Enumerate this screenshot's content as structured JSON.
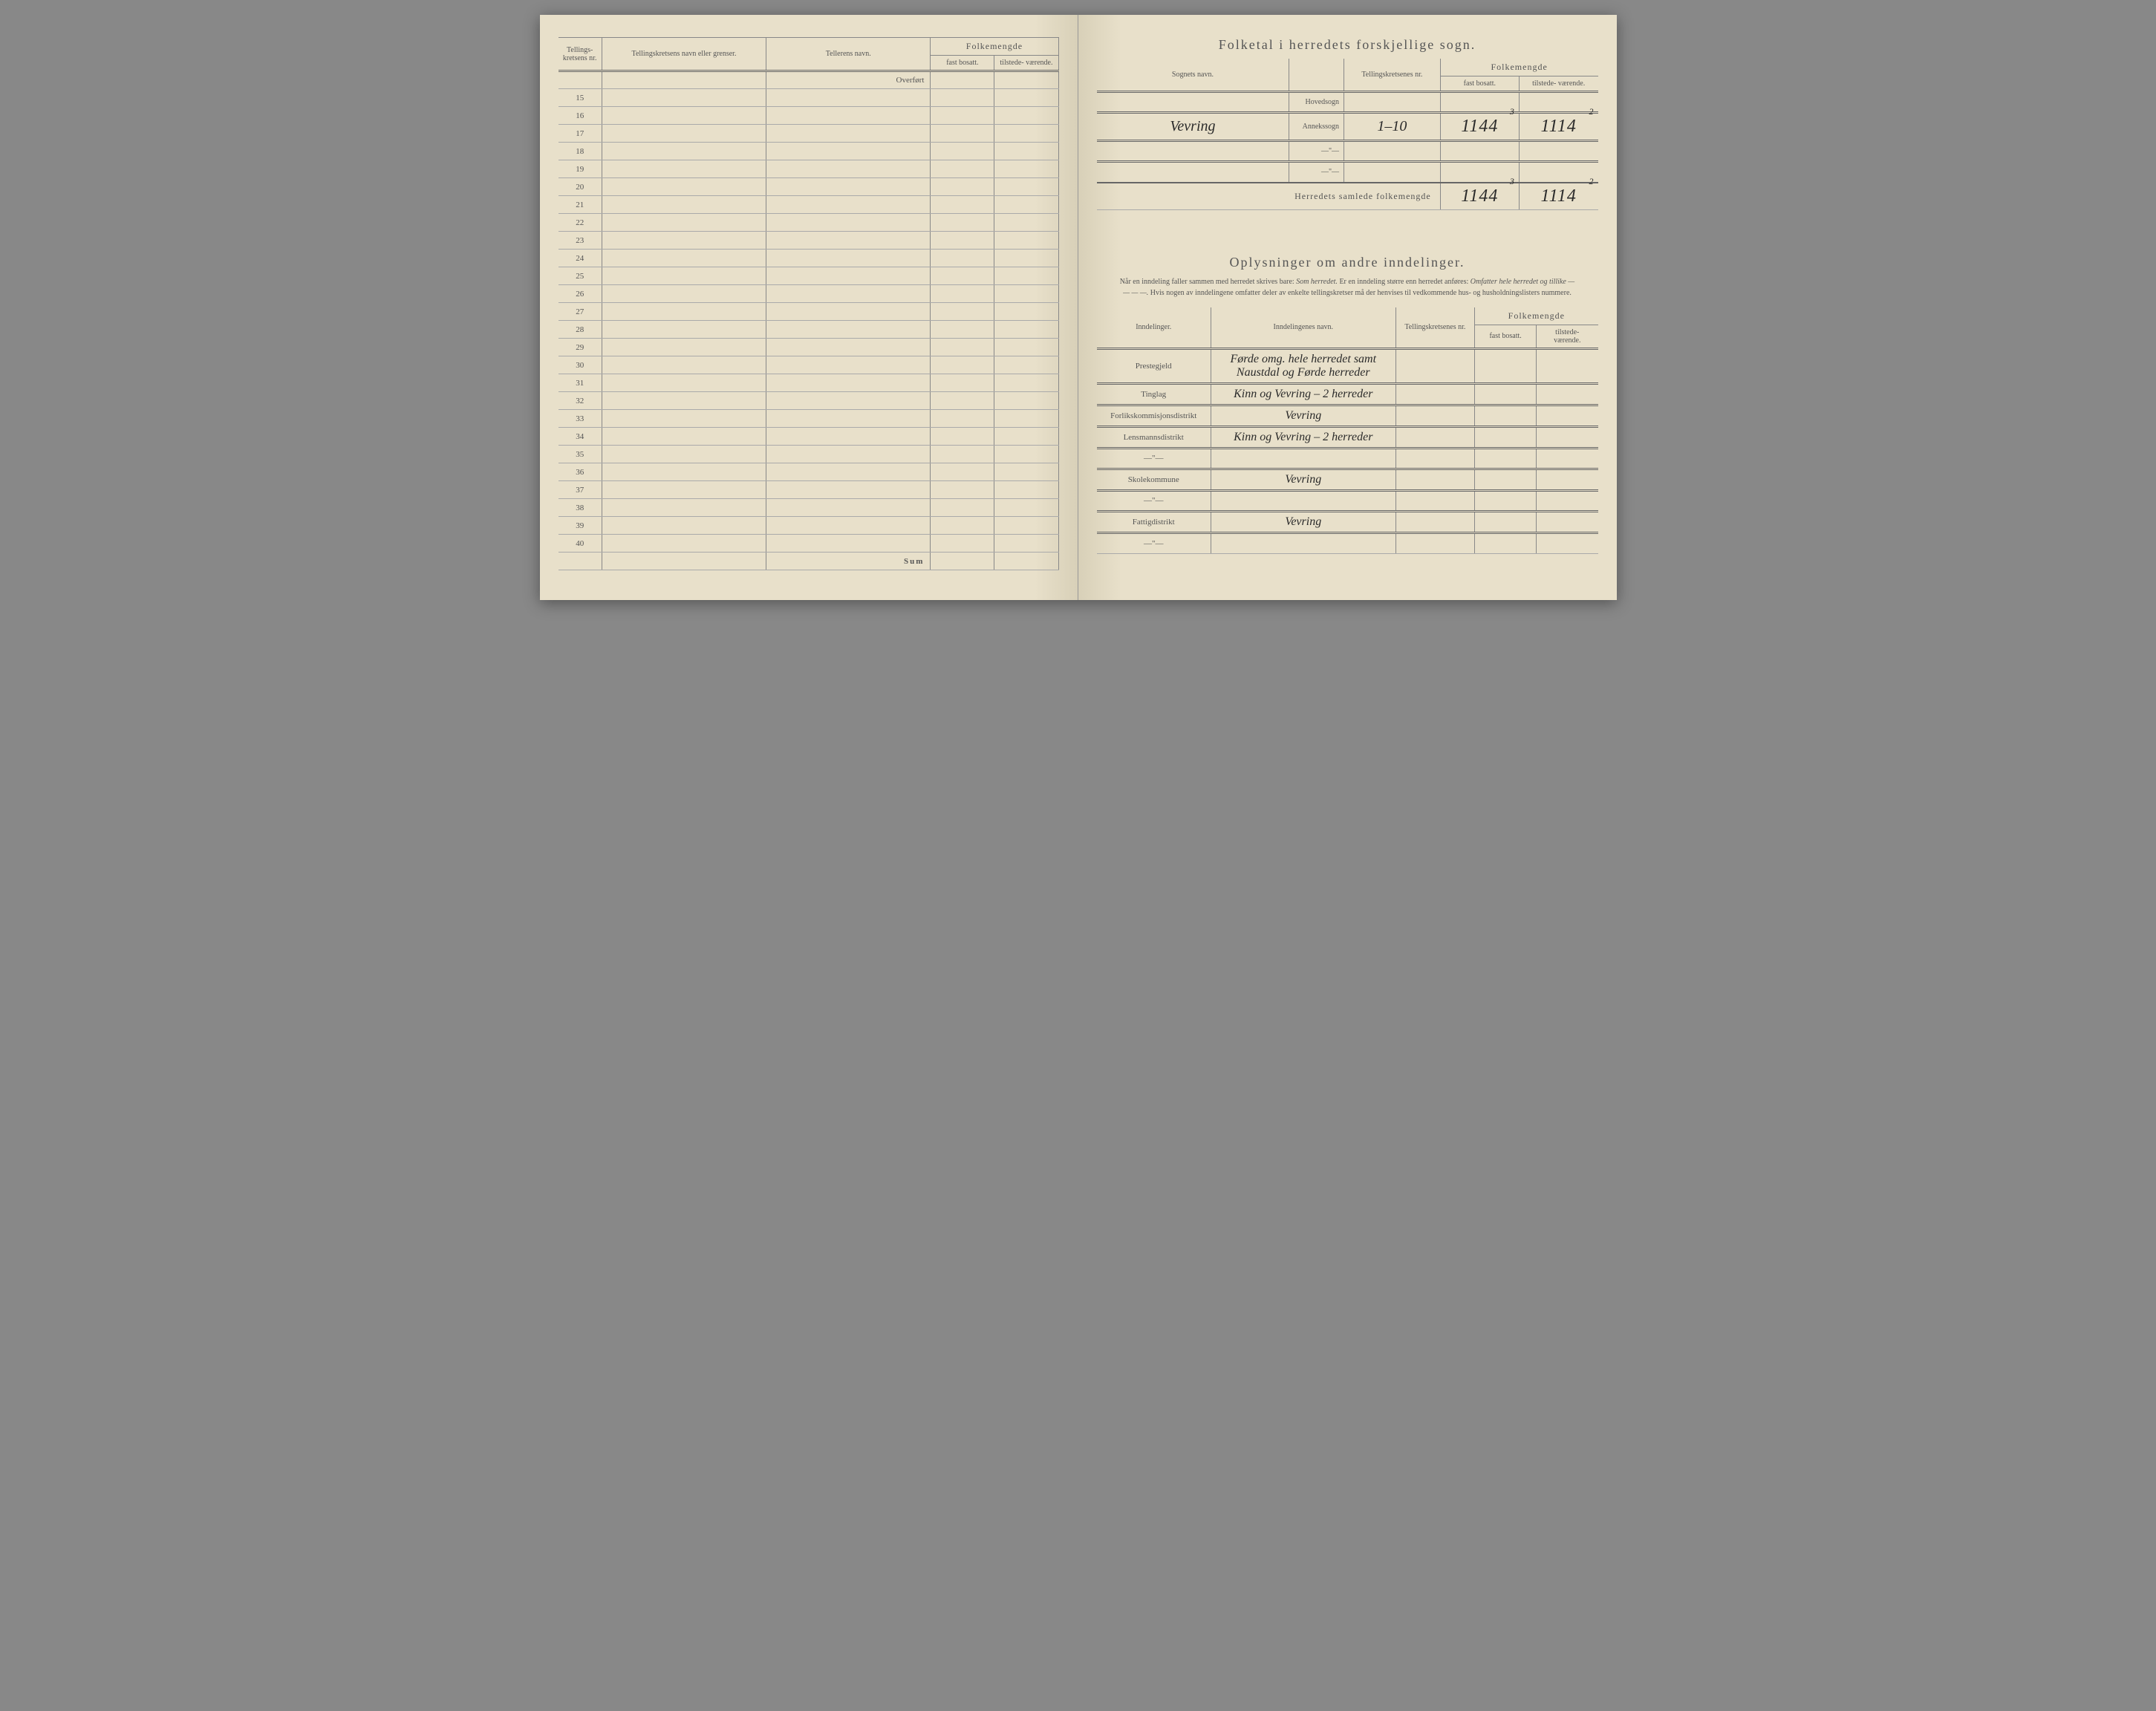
{
  "leftPage": {
    "headers": {
      "col1": "Tellings-\nkretsens\nnr.",
      "col2": "Tellingskretsens navn eller grenser.",
      "col3": "Tellerens navn.",
      "folkemengde": "Folkemengde",
      "col4": "fast\nbosatt.",
      "col5": "tilstede-\nværende."
    },
    "overfort": "Overført",
    "rows": [
      15,
      16,
      17,
      18,
      19,
      20,
      21,
      22,
      23,
      24,
      25,
      26,
      27,
      28,
      29,
      30,
      31,
      32,
      33,
      34,
      35,
      36,
      37,
      38,
      39,
      40
    ],
    "sum": "Sum"
  },
  "rightPage": {
    "title1": "Folketal i herredets forskjellige sogn.",
    "table1": {
      "headers": {
        "sognets": "Sognets navn.",
        "tellingskretsenes": "Tellingskretsenes\nnr.",
        "folkemengde": "Folkemengde",
        "fast": "fast\nbosatt.",
        "tilstede": "tilstede-\nværende."
      },
      "rows": [
        {
          "label": "Hovedsogn",
          "name": "",
          "krets": "",
          "fast": "",
          "tilstede": ""
        },
        {
          "label": "Annekssogn",
          "name": "Vevring",
          "krets": "1–10",
          "fast": "1144",
          "fast_sup": "3",
          "tilstede": "1114",
          "tilstede_sup": "2"
        },
        {
          "label": "—\"—",
          "name": "",
          "krets": "",
          "fast": "",
          "tilstede": ""
        },
        {
          "label": "—\"—",
          "name": "",
          "krets": "",
          "fast": "",
          "tilstede": ""
        }
      ],
      "totalLabel": "Herredets samlede folkemengde",
      "totalFast": "1144",
      "totalFastSup": "3",
      "totalTilstede": "1114",
      "totalTilstedeSup": "2"
    },
    "title2": "Oplysninger om andre inndelinger.",
    "subtitle": "Når en inndeling faller sammen med herredet skrives bare: Som herredet. Er en inndeling større enn herredet anføres: Omfatter hele herredet og tillike — — — —. Hvis nogen av inndelingene omfatter deler av enkelte tellingskretser må der henvises til vedkommende hus- og husholdningslisters nummere.",
    "table2": {
      "headers": {
        "inndelinger": "Inndelinger.",
        "navn": "Inndelingenes navn.",
        "tellingskretsenes": "Tellingskretsenes\nnr.",
        "folkemengde": "Folkemengde",
        "fast": "fast\nbosatt.",
        "tilstede": "tilstede-\nværende."
      },
      "rows": [
        {
          "category": "Prestegjeld",
          "name": "Førde omg. hele herredet samt Naustdal og Førde herreder"
        },
        {
          "category": "Tinglag",
          "name": "Kinn og Vevring – 2 herreder"
        },
        {
          "category": "Forlikskommisjonsdistrikt",
          "name": "Vevring"
        },
        {
          "category": "Lensmannsdistrikt",
          "name": "Kinn og Vevring – 2 herreder"
        },
        {
          "category": "—\"—",
          "name": ""
        },
        {
          "category": "Skolekommune",
          "name": "Vevring"
        },
        {
          "category": "—\"—",
          "name": ""
        },
        {
          "category": "Fattigdistrikt",
          "name": "Vevring"
        },
        {
          "category": "—\"—",
          "name": ""
        }
      ]
    }
  }
}
